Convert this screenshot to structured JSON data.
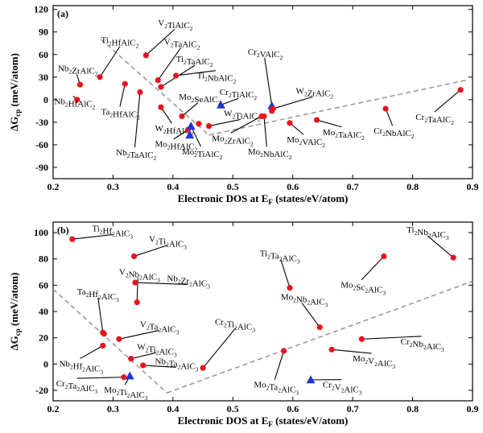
{
  "chart_data": [
    {
      "type": "scatter",
      "panel_label": "(a)",
      "xlabel": "Electronic DOS at E_F (states/eV/atom)",
      "ylabel": "ΔG_cp (meV/atom)",
      "xlim": [
        0.2,
        0.9
      ],
      "ylim": [
        -105,
        125
      ],
      "xticks": [
        0.2,
        0.3,
        0.4,
        0.5,
        0.6,
        0.7,
        0.8,
        0.9
      ],
      "xtick_labels": [
        "0.2",
        "0.3",
        "0.4",
        "0.5",
        "0.6",
        "0.7",
        "0.8",
        "0.9"
      ],
      "yticks": [
        -90,
        -60,
        -30,
        0,
        30,
        60,
        90,
        120
      ],
      "ytick_labels": [
        "-90",
        "-60",
        "-30",
        "0",
        "30",
        "60",
        "90",
        "120"
      ],
      "grid": false,
      "markers": {
        "circle": "#e8141b",
        "triangle": "#1f35d6"
      },
      "dashed_lines": [
        {
          "x": [
            0.28,
            0.46
          ],
          "y": [
            80,
            -47
          ]
        },
        {
          "x": [
            0.46,
            0.89
          ],
          "y": [
            -47,
            26
          ]
        }
      ],
      "points": [
        {
          "label": "V₂TiAlC₂",
          "x": 0.355,
          "y": 59,
          "marker": "circle",
          "lx": 0.375,
          "ly": 98
        },
        {
          "label": "V₂TaAlC₂",
          "x": 0.375,
          "y": 26,
          "marker": "circle",
          "lx": 0.385,
          "ly": 73
        },
        {
          "label": "Ti₂HfAlC₂",
          "x": 0.278,
          "y": 30,
          "marker": "circle",
          "lx": 0.28,
          "ly": 75
        },
        {
          "label": "Ti₂TaAlC₂",
          "x": 0.38,
          "y": 17,
          "marker": "circle",
          "lx": 0.405,
          "ly": 50
        },
        {
          "label": "Ti₂NbAlC₂",
          "x": 0.405,
          "y": 32,
          "marker": "circle",
          "lx": 0.44,
          "ly": 28
        },
        {
          "label": "Nb₂ZrAlC₂",
          "x": 0.245,
          "y": 20,
          "marker": "circle",
          "lx": 0.208,
          "ly": 38
        },
        {
          "label": "Nb₂HfAlC₂",
          "x": 0.24,
          "y": 0,
          "marker": "circle",
          "lx": 0.202,
          "ly": -6
        },
        {
          "label": "Ta₂HfAlC₂",
          "x": 0.32,
          "y": 21,
          "marker": "circle",
          "lx": 0.28,
          "ly": -20
        },
        {
          "label": "W₂HfAlC₂",
          "x": 0.38,
          "y": -10,
          "marker": "circle",
          "lx": 0.37,
          "ly": -42
        },
        {
          "label": "Nb₂TaAlC₂",
          "x": 0.345,
          "y": 10,
          "marker": "circle",
          "lx": 0.305,
          "ly": -74
        },
        {
          "label": "Mo₂SeAlC₂",
          "x": 0.415,
          "y": -22,
          "marker": "circle",
          "lx": 0.41,
          "ly": 0
        },
        {
          "label": "Mo₂HfAlC₂",
          "x": 0.425,
          "y": -40,
          "marker": "circle",
          "lx": 0.37,
          "ly": -63
        },
        {
          "label": "Mo₂TiAlC₂",
          "x": 0.43,
          "y": -35,
          "marker": "triangle",
          "lx": 0.415,
          "ly": -73
        },
        {
          "label": "",
          "x": 0.428,
          "y": -47,
          "marker": "triangle"
        },
        {
          "label": "Cr₂TiAlC₂",
          "x": 0.48,
          "y": -7,
          "marker": "triangle",
          "lx": 0.478,
          "ly": 6
        },
        {
          "label": "",
          "x": 0.443,
          "y": -32,
          "marker": "circle"
        },
        {
          "label": "W₂TiAlC₂",
          "x": 0.46,
          "y": -35,
          "marker": "circle",
          "lx": 0.485,
          "ly": -22
        },
        {
          "label": "Cr₂VAlC₂",
          "x": 0.565,
          "y": -8,
          "marker": "triangle",
          "lx": 0.525,
          "ly": 60
        },
        {
          "label": "",
          "x": 0.565,
          "y": -15,
          "marker": "circle"
        },
        {
          "label": "W₂ZrAlC₂",
          "x": 0.567,
          "y": -12,
          "marker": "circle",
          "lx": 0.605,
          "ly": 8
        },
        {
          "label": "Mo₂ZrAlC₂",
          "x": 0.548,
          "y": -22,
          "marker": "circle",
          "lx": 0.465,
          "ly": -55
        },
        {
          "label": "Mo₂NbAlC₂",
          "x": 0.552,
          "y": -22,
          "marker": "circle",
          "lx": 0.525,
          "ly": -73
        },
        {
          "label": "Mo₂VAlC₂",
          "x": 0.595,
          "y": -31,
          "marker": "circle",
          "lx": 0.59,
          "ly": -57
        },
        {
          "label": "Mo₂TaAlC₂",
          "x": 0.64,
          "y": -27,
          "marker": "circle",
          "lx": 0.65,
          "ly": -47
        },
        {
          "label": "Cr₂NbAlC₂",
          "x": 0.755,
          "y": -12,
          "marker": "circle",
          "lx": 0.735,
          "ly": -45
        },
        {
          "label": "Cr₂TaAlC₂",
          "x": 0.88,
          "y": 13,
          "marker": "circle",
          "lx": 0.805,
          "ly": -27
        }
      ]
    },
    {
      "type": "scatter",
      "panel_label": "(b)",
      "xlabel": "Electronic DOS at E_F (states/eV/atom)",
      "ylabel": "ΔG_cp (meV/atom)",
      "xlim": [
        0.2,
        0.9
      ],
      "ylim": [
        -28,
        108
      ],
      "xticks": [
        0.2,
        0.3,
        0.4,
        0.5,
        0.6,
        0.7,
        0.8,
        0.9
      ],
      "xtick_labels": [
        "0.2",
        "0.3",
        "0.4",
        "0.5",
        "0.6",
        "0.7",
        "0.8",
        "0.9"
      ],
      "yticks": [
        -20,
        0,
        20,
        40,
        60,
        80,
        100
      ],
      "ytick_labels": [
        "-20",
        "0",
        "20",
        "40",
        "60",
        "80",
        "100"
      ],
      "grid": false,
      "markers": {
        "circle": "#e8141b",
        "triangle": "#1f35d6"
      },
      "dashed_lines": [
        {
          "x": [
            0.2,
            0.39
          ],
          "y": [
            57,
            -22
          ]
        },
        {
          "x": [
            0.39,
            0.9
          ],
          "y": [
            -22,
            63
          ]
        }
      ],
      "points": [
        {
          "label": "Ti₂Hf₂AlC₃",
          "x": 0.232,
          "y": 95,
          "marker": "circle",
          "lx": 0.265,
          "ly": 101
        },
        {
          "label": "V₂Ti₂AlC₃",
          "x": 0.335,
          "y": 82,
          "marker": "circle",
          "lx": 0.36,
          "ly": 93
        },
        {
          "label": "V₂Nb₂AlC₃",
          "x": 0.34,
          "y": 47,
          "marker": "circle",
          "lx": 0.31,
          "ly": 68
        },
        {
          "label": "Nb₂Zr₂AlC₃",
          "x": 0.337,
          "y": 62,
          "marker": "circle",
          "lx": 0.39,
          "ly": 63
        },
        {
          "label": "Ta₂Hf₂AlC₃",
          "x": 0.283,
          "y": 24,
          "marker": "circle",
          "lx": 0.24,
          "ly": 53
        },
        {
          "label": "",
          "x": 0.285,
          "y": 23,
          "marker": "circle"
        },
        {
          "label": "V₂Ta₂AlC₃",
          "x": 0.31,
          "y": 19,
          "marker": "circle",
          "lx": 0.345,
          "ly": 28
        },
        {
          "label": "W₂Ti₂AlC₃",
          "x": 0.33,
          "y": 4,
          "marker": "circle",
          "lx": 0.34,
          "ly": 11
        },
        {
          "label": "Nb₂Ta₂AlC₃",
          "x": 0.35,
          "y": -1,
          "marker": "circle",
          "lx": 0.37,
          "ly": 0
        },
        {
          "label": "Nb₂Hf₂AlC₃",
          "x": 0.283,
          "y": 14,
          "marker": "circle",
          "lx": 0.21,
          "ly": -2
        },
        {
          "label": "Cr₂Ta₂AlC₃",
          "x": 0.318,
          "y": -10,
          "marker": "circle",
          "lx": 0.205,
          "ly": -17
        },
        {
          "label": "Mo₂Ti₂AlC₃",
          "x": 0.328,
          "y": -9,
          "marker": "triangle",
          "lx": 0.285,
          "ly": -22
        },
        {
          "label": "Cr₂Ti₂AlC₃",
          "x": 0.45,
          "y": -3,
          "marker": "circle",
          "lx": 0.47,
          "ly": 30
        },
        {
          "label": "Ti₂Ta₂AlC₃",
          "x": 0.595,
          "y": 58,
          "marker": "circle",
          "lx": 0.545,
          "ly": 82
        },
        {
          "label": "Mo₂Nb₂AlC₃",
          "x": 0.645,
          "y": 28,
          "marker": "circle",
          "lx": 0.58,
          "ly": 49
        },
        {
          "label": "Mo₂Sc₂AlC₃",
          "x": 0.752,
          "y": 82,
          "marker": "circle",
          "lx": 0.68,
          "ly": 58
        },
        {
          "label": "Ti₂Nb₂AlC₃",
          "x": 0.868,
          "y": 81,
          "marker": "circle",
          "lx": 0.79,
          "ly": 100
        },
        {
          "label": "Mo₂Ta₂AlC₃",
          "x": 0.585,
          "y": 10,
          "marker": "circle",
          "lx": 0.535,
          "ly": -18
        },
        {
          "label": "Cr₂V₂AlC₃",
          "x": 0.63,
          "y": -12,
          "marker": "triangle",
          "lx": 0.65,
          "ly": -18
        },
        {
          "label": "Mo₂V₂AlC₃",
          "x": 0.665,
          "y": 11,
          "marker": "circle",
          "lx": 0.7,
          "ly": 2
        },
        {
          "label": "Cr₂Nb₂AlC₃",
          "x": 0.715,
          "y": 19,
          "marker": "circle",
          "lx": 0.78,
          "ly": 15
        }
      ]
    }
  ]
}
